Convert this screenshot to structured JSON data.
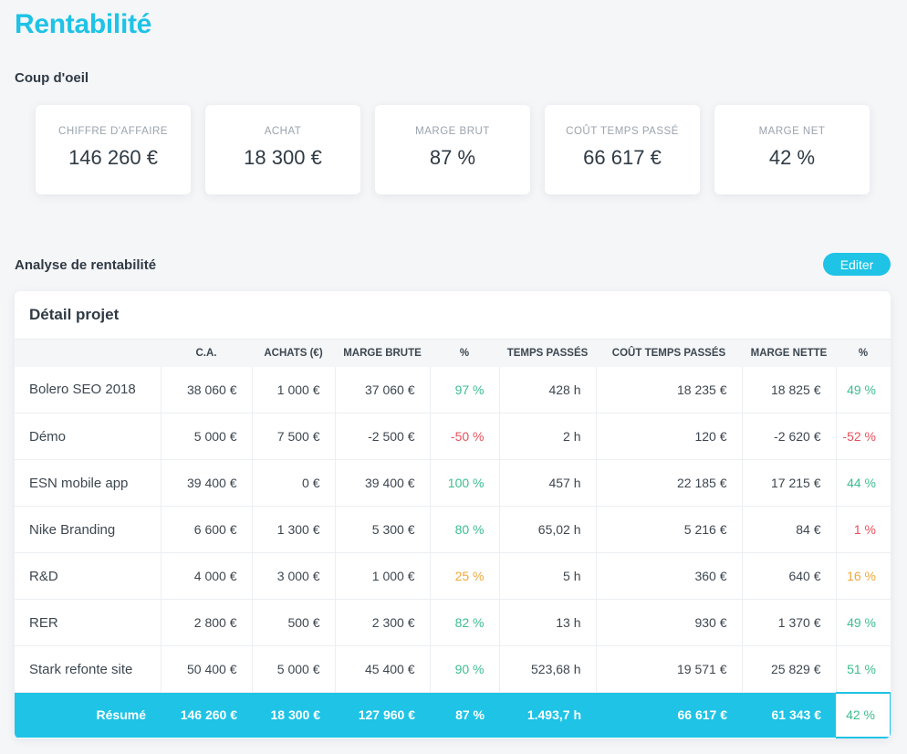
{
  "page": {
    "title": "Rentabilité"
  },
  "glance": {
    "title": "Coup d'oeil",
    "kpis": [
      {
        "label": "CHIFFRE D'AFFAIRE",
        "value": "146 260 €"
      },
      {
        "label": "ACHAT",
        "value": "18 300 €"
      },
      {
        "label": "MARGE BRUT",
        "value": "87 %"
      },
      {
        "label": "COÛT TEMPS PASSÉ",
        "value": "66 617 €"
      },
      {
        "label": "MARGE NET",
        "value": "42 %"
      }
    ]
  },
  "analyse": {
    "title": "Analyse de rentabilité",
    "edit_label": "Editer",
    "panel_title": "Détail projet",
    "headers": [
      "",
      "C.A.",
      "ACHATS (€)",
      "MARGE BRUTE",
      "%",
      "TEMPS PASSÉS",
      "COÛT TEMPS PASSÉS",
      "MARGE NETTE",
      "%"
    ],
    "rows": [
      {
        "name": "Bolero SEO 2018",
        "ca": "38 060 €",
        "achats": "1 000 €",
        "marge_brute": "37 060 €",
        "pct_brute": "97 %",
        "temps": "428 h",
        "cout_temps": "18 235 €",
        "marge_nette": "18 825 €",
        "pct_nette": "49 %"
      },
      {
        "name": "Démo",
        "ca": "5 000 €",
        "achats": "7 500 €",
        "marge_brute": "-2 500 €",
        "pct_brute": "-50 %",
        "temps": "2 h",
        "cout_temps": "120 €",
        "marge_nette": "-2 620 €",
        "pct_nette": "-52 %"
      },
      {
        "name": "ESN mobile app",
        "ca": "39 400 €",
        "achats": "0 €",
        "marge_brute": "39 400 €",
        "pct_brute": "100 %",
        "temps": "457 h",
        "cout_temps": "22 185 €",
        "marge_nette": "17 215 €",
        "pct_nette": "44 %"
      },
      {
        "name": "Nike Branding",
        "ca": "6 600 €",
        "achats": "1 300 €",
        "marge_brute": "5 300 €",
        "pct_brute": "80 %",
        "temps": "65,02 h",
        "cout_temps": "5 216 €",
        "marge_nette": "84 €",
        "pct_nette": "1 %"
      },
      {
        "name": "R&D",
        "ca": "4 000 €",
        "achats": "3 000 €",
        "marge_brute": "1 000 €",
        "pct_brute": "25 %",
        "temps": "5 h",
        "cout_temps": "360 €",
        "marge_nette": "640 €",
        "pct_nette": "16 %"
      },
      {
        "name": "RER",
        "ca": "2 800 €",
        "achats": "500 €",
        "marge_brute": "2 300 €",
        "pct_brute": "82 %",
        "temps": "13 h",
        "cout_temps": "930 €",
        "marge_nette": "1 370 €",
        "pct_nette": "49 %"
      },
      {
        "name": "Stark refonte site",
        "ca": "50 400 €",
        "achats": "5 000 €",
        "marge_brute": "45 400 €",
        "pct_brute": "90 %",
        "temps": "523,68 h",
        "cout_temps": "19 571 €",
        "marge_nette": "25 829 €",
        "pct_nette": "51 %"
      }
    ],
    "summary": {
      "label": "Résumé",
      "ca": "146 260 €",
      "achats": "18 300 €",
      "marge_brute": "127 960 €",
      "pct_brute": "87 %",
      "temps": "1.493,7 h",
      "cout_temps": "66 617 €",
      "marge_nette": "61 343 €",
      "pct_nette": "42 %"
    },
    "colors": {
      "accent": "#1ec3e6",
      "positive": "#3dbd8f",
      "negative": "#e8505b",
      "warning": "#f0a83c"
    }
  }
}
